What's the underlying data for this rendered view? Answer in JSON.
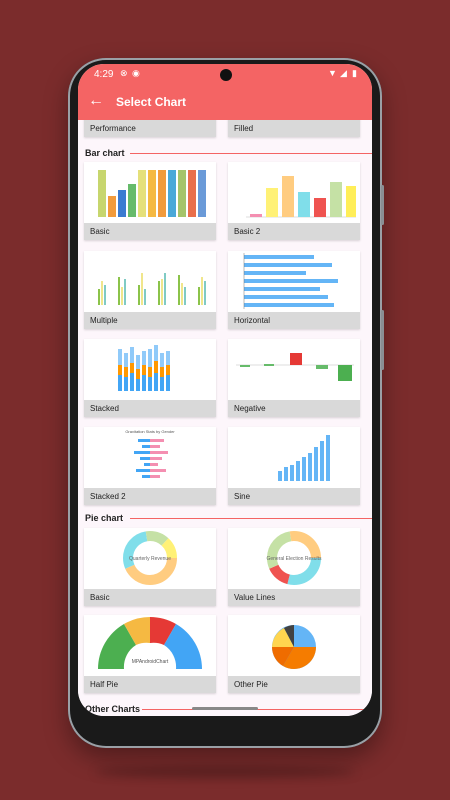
{
  "status_bar": {
    "time": "4:29"
  },
  "app_bar": {
    "title": "Select Chart",
    "back_icon": "arrow-left-icon"
  },
  "top_cards": [
    "Performance",
    "Filled"
  ],
  "sections": {
    "bar": {
      "title": "Bar chart",
      "cards": [
        "Basic",
        "Basic 2",
        "Multiple",
        "Horizontal",
        "Stacked",
        "Negative",
        "Stacked 2",
        "Sine"
      ]
    },
    "pie": {
      "title": "Pie chart",
      "cards": [
        "Basic",
        "Value Lines",
        "Half Pie",
        "Other Pie"
      ],
      "thumb_text": {
        "quarterly": "Quarterly Revenue",
        "general": "General Election Results",
        "half": "MPAndroidChart"
      }
    },
    "other": {
      "title": "Other Charts"
    }
  },
  "stacked2_title": "Gravitation Stats by Gender"
}
